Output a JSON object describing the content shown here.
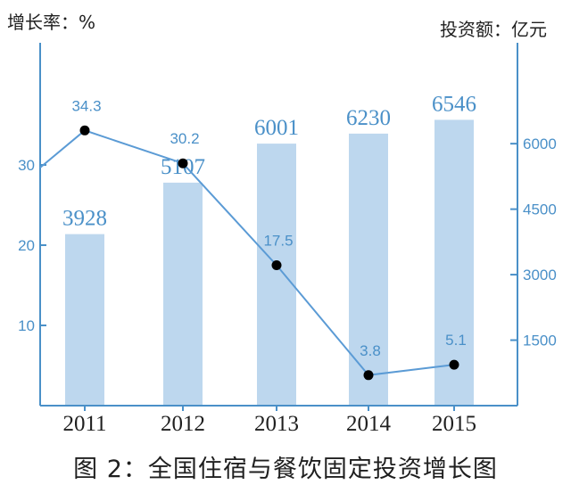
{
  "chart_data": {
    "type": "bar+line",
    "title": "图 2：全国住宿与餐饮固定投资增长图",
    "ylabel_left": "增长率：%",
    "ylabel_right": "投资额：亿元",
    "categories": [
      "2011",
      "2012",
      "2013",
      "2014",
      "2015"
    ],
    "left_axis": {
      "ylim": [
        0,
        40
      ],
      "ticks": [
        "10",
        "20",
        "30"
      ]
    },
    "right_axis": {
      "ylim": [
        0,
        7800
      ],
      "ticks": [
        "1500",
        "3000",
        "4500",
        "6000"
      ]
    },
    "series": [
      {
        "type": "bar",
        "axis": "right",
        "values": [
          3928,
          5107,
          6001,
          6230,
          6546
        ]
      },
      {
        "type": "line",
        "axis": "left",
        "values": [
          34.3,
          30.2,
          17.5,
          3.8,
          5.1
        ]
      }
    ],
    "line_value_labels": [
      "34.3",
      "30.2",
      "17.5",
      "3.8",
      "5.1"
    ],
    "bar_value_labels": [
      "3928",
      "5107",
      "6001",
      "6230",
      "6546"
    ],
    "colors": {
      "bar": "#bdd7ee",
      "line": "#5b9bd5",
      "axis": "#4a90c8",
      "point": "#000000",
      "text": "#1f1f1f"
    }
  }
}
